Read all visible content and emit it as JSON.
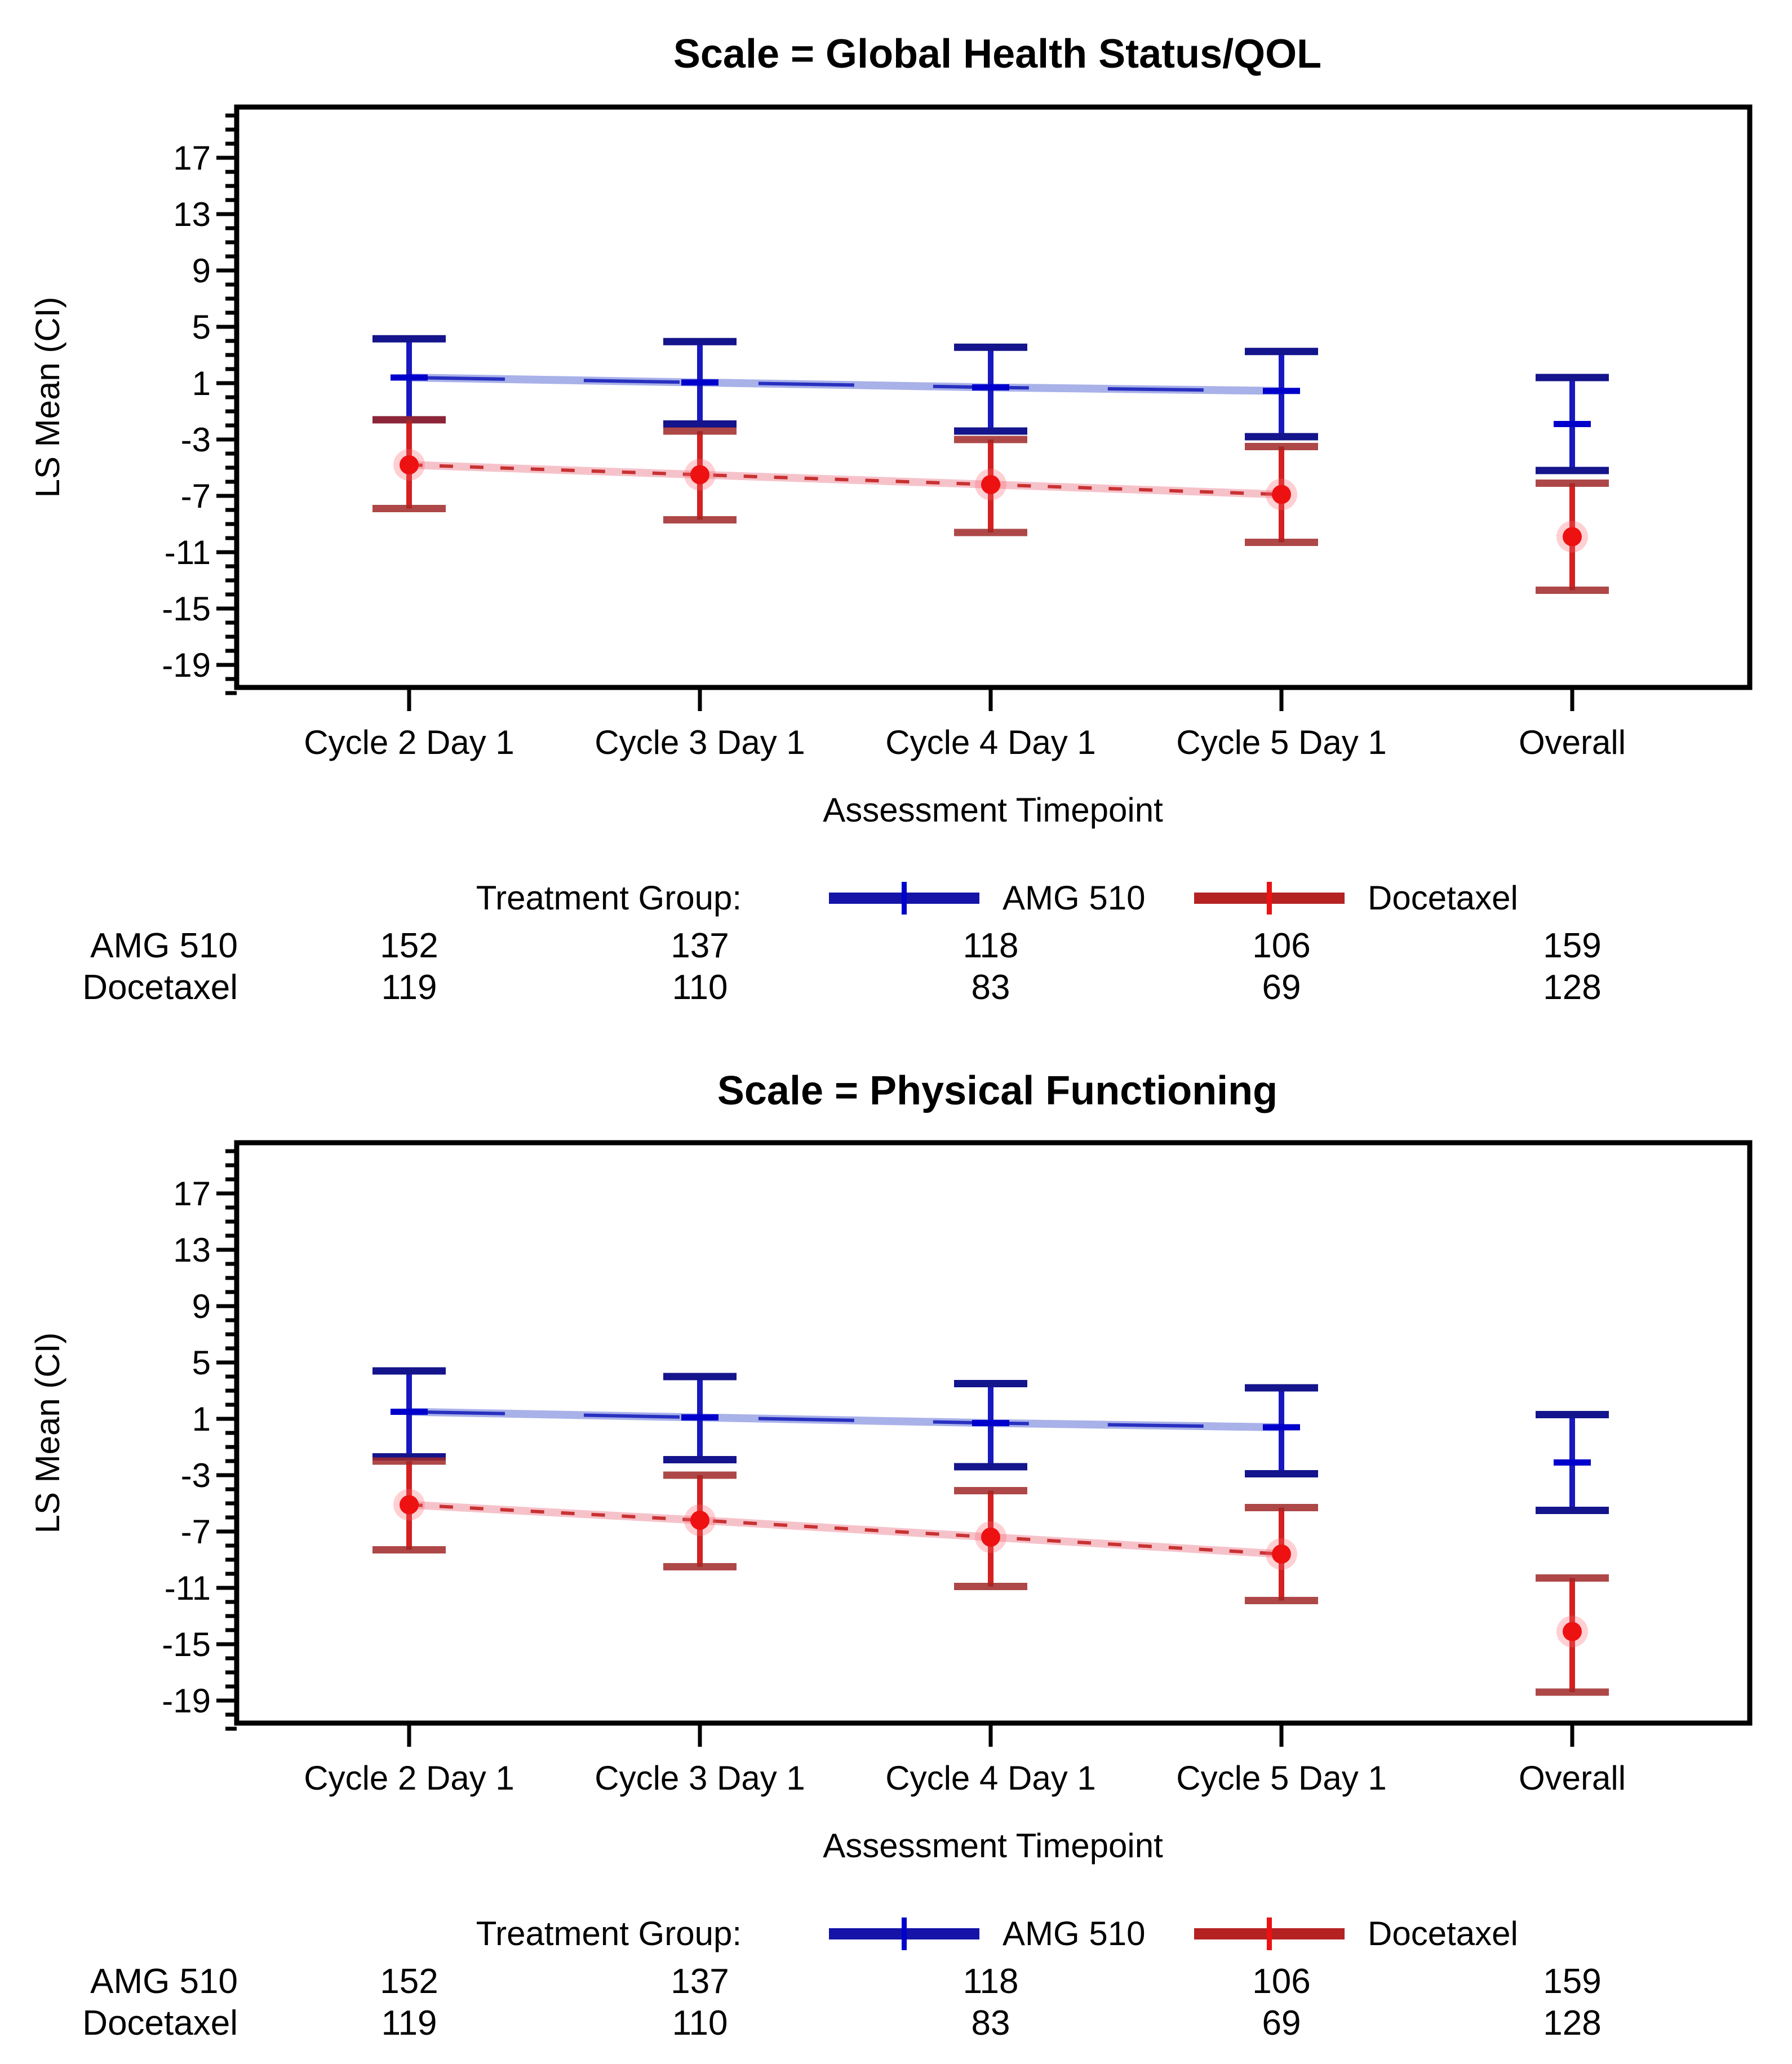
{
  "page": {
    "background": "#ffffff"
  },
  "colors": {
    "axis": "#000000",
    "text": "#000000",
    "amg": {
      "stem": "#1818c0",
      "cap": "#14148c",
      "marker": "#0000cc",
      "halo_line": "#a9b1e9",
      "core_dash": "#2830c0",
      "legend_bar": "#1414a8"
    },
    "doc": {
      "stem": "#d42020",
      "cap": "#a02828",
      "marker": "#ee1111",
      "halo_line": "#f6c2ca",
      "core_dash": "#c83232",
      "legend_bar": "#b42222",
      "marker_halo": "rgba(255,100,110,0.30)"
    }
  },
  "chart_data": [
    {
      "type": "line",
      "title": "Scale = Global Health Status/QOL",
      "ylabel": "LS Mean (CI)",
      "xlabel": "Assessment Timepoint",
      "yticks": [
        17,
        13,
        9,
        5,
        1,
        -3,
        -7,
        -11,
        -15,
        -19
      ],
      "ylim": [
        -21.5,
        20.6
      ],
      "grid": false,
      "legend_position": "bottom",
      "categories": [
        "Cycle 2 Day 1",
        "Cycle 3 Day 1",
        "Cycle 4 Day 1",
        "Cycle 5 Day 1",
        "Overall"
      ],
      "connect_first_n": 4,
      "series": [
        {
          "name": "AMG 510",
          "color_key": "amg",
          "dashed": false,
          "means": [
            1.4,
            1.05,
            0.7,
            0.45,
            -1.9
          ],
          "upper": [
            4.15,
            3.95,
            3.55,
            3.25,
            1.4
          ],
          "lower": [
            -1.6,
            -1.9,
            -2.4,
            -2.8,
            -5.2
          ]
        },
        {
          "name": "Docetaxel",
          "color_key": "doc",
          "dashed": true,
          "means": [
            -4.8,
            -5.5,
            -6.2,
            -6.9,
            -9.9
          ],
          "upper": [
            -1.6,
            -2.4,
            -3.0,
            -3.5,
            -6.1
          ],
          "lower": [
            -7.9,
            -8.7,
            -9.6,
            -10.3,
            -13.7
          ]
        }
      ],
      "legend": {
        "label": "Treatment Group:",
        "entries": [
          "AMG 510",
          "Docetaxel"
        ]
      },
      "table": {
        "rows": [
          {
            "label": "AMG 510",
            "values": [
              "152",
              "137",
              "118",
              "106",
              "159"
            ]
          },
          {
            "label": "Docetaxel",
            "values": [
              "119",
              "110",
              "83",
              "69",
              "128"
            ]
          }
        ]
      }
    },
    {
      "type": "line",
      "title": "Scale = Physical Functioning",
      "ylabel": "LS Mean (CI)",
      "xlabel": "Assessment Timepoint",
      "yticks": [
        17,
        13,
        9,
        5,
        1,
        -3,
        -7,
        -11,
        -15,
        -19
      ],
      "ylim": [
        -21.5,
        20.6
      ],
      "grid": false,
      "legend_position": "bottom",
      "categories": [
        "Cycle 2 Day 1",
        "Cycle 3 Day 1",
        "Cycle 4 Day 1",
        "Cycle 5 Day 1",
        "Overall"
      ],
      "connect_first_n": 4,
      "series": [
        {
          "name": "AMG 510",
          "color_key": "amg",
          "dashed": false,
          "means": [
            1.5,
            1.1,
            0.7,
            0.4,
            -2.1
          ],
          "upper": [
            4.4,
            4.0,
            3.5,
            3.2,
            1.3
          ],
          "lower": [
            -1.7,
            -1.9,
            -2.4,
            -2.9,
            -5.5
          ]
        },
        {
          "name": "Docetaxel",
          "color_key": "doc",
          "dashed": true,
          "means": [
            -5.1,
            -6.2,
            -7.4,
            -8.6,
            -14.1
          ],
          "upper": [
            -2.0,
            -3.0,
            -4.1,
            -5.3,
            -10.3
          ],
          "lower": [
            -8.3,
            -9.5,
            -10.9,
            -11.9,
            -18.4
          ]
        }
      ],
      "legend": {
        "label": "Treatment Group:",
        "entries": [
          "AMG 510",
          "Docetaxel"
        ]
      },
      "table": {
        "rows": [
          {
            "label": "AMG 510",
            "values": [
              "152",
              "137",
              "118",
              "106",
              "159"
            ]
          },
          {
            "label": "Docetaxel",
            "values": [
              "119",
              "110",
              "83",
              "69",
              "128"
            ]
          }
        ]
      }
    }
  ]
}
